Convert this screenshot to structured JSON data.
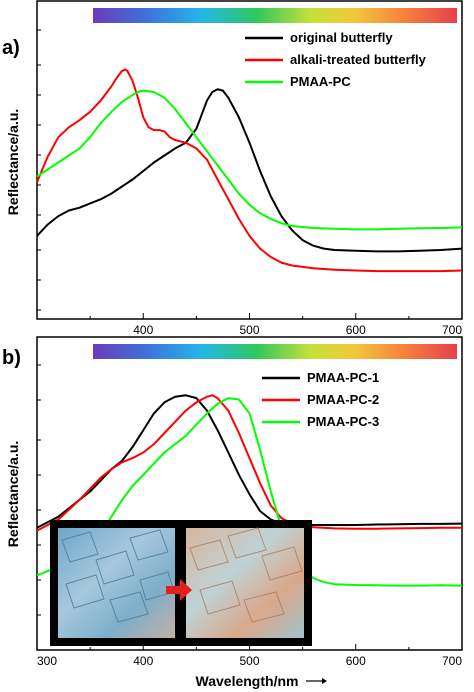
{
  "chart_data": [
    {
      "type": "line",
      "panel_label": "a)",
      "ylabel": "Reflectance/a.u.",
      "xlabel": "",
      "xlim": [
        300,
        700
      ],
      "x_ticks": [
        "400",
        "500",
        "600",
        "700"
      ],
      "legend": "top-right",
      "spectrum_bar": true,
      "series": [
        {
          "name": "original butterfly",
          "color": "#000000",
          "points": [
            [
              300,
              0.27
            ],
            [
              310,
              0.31
            ],
            [
              320,
              0.34
            ],
            [
              330,
              0.36
            ],
            [
              340,
              0.37
            ],
            [
              350,
              0.385
            ],
            [
              360,
              0.4
            ],
            [
              370,
              0.42
            ],
            [
              380,
              0.445
            ],
            [
              390,
              0.47
            ],
            [
              400,
              0.5
            ],
            [
              410,
              0.53
            ],
            [
              420,
              0.555
            ],
            [
              430,
              0.58
            ],
            [
              440,
              0.6
            ],
            [
              450,
              0.65
            ],
            [
              460,
              0.75
            ],
            [
              465,
              0.78
            ],
            [
              470,
              0.79
            ],
            [
              475,
              0.785
            ],
            [
              480,
              0.76
            ],
            [
              490,
              0.69
            ],
            [
              500,
              0.6
            ],
            [
              510,
              0.5
            ],
            [
              520,
              0.41
            ],
            [
              530,
              0.34
            ],
            [
              540,
              0.29
            ],
            [
              550,
              0.255
            ],
            [
              560,
              0.235
            ],
            [
              570,
              0.225
            ],
            [
              580,
              0.22
            ],
            [
              600,
              0.217
            ],
            [
              620,
              0.215
            ],
            [
              640,
              0.215
            ],
            [
              660,
              0.217
            ],
            [
              680,
              0.22
            ],
            [
              700,
              0.225
            ]
          ]
        },
        {
          "name": "alkali-treated butterfly",
          "color": "#ff0000",
          "points": [
            [
              300,
              0.46
            ],
            [
              310,
              0.55
            ],
            [
              320,
              0.62
            ],
            [
              330,
              0.655
            ],
            [
              340,
              0.68
            ],
            [
              350,
              0.71
            ],
            [
              360,
              0.75
            ],
            [
              370,
              0.8
            ],
            [
              375,
              0.83
            ],
            [
              380,
              0.855
            ],
            [
              383,
              0.86
            ],
            [
              385,
              0.855
            ],
            [
              390,
              0.82
            ],
            [
              395,
              0.76
            ],
            [
              400,
              0.69
            ],
            [
              405,
              0.655
            ],
            [
              410,
              0.645
            ],
            [
              415,
              0.645
            ],
            [
              420,
              0.64
            ],
            [
              425,
              0.62
            ],
            [
              430,
              0.61
            ],
            [
              440,
              0.6
            ],
            [
              450,
              0.58
            ],
            [
              460,
              0.54
            ],
            [
              470,
              0.47
            ],
            [
              480,
              0.4
            ],
            [
              490,
              0.33
            ],
            [
              500,
              0.27
            ],
            [
              510,
              0.225
            ],
            [
              520,
              0.195
            ],
            [
              530,
              0.175
            ],
            [
              540,
              0.165
            ],
            [
              560,
              0.155
            ],
            [
              580,
              0.15
            ],
            [
              600,
              0.147
            ],
            [
              620,
              0.145
            ],
            [
              640,
              0.145
            ],
            [
              660,
              0.145
            ],
            [
              680,
              0.145
            ],
            [
              700,
              0.147
            ]
          ]
        },
        {
          "name": "PMAA-PC",
          "color": "#00ff00",
          "points": [
            [
              300,
              0.48
            ],
            [
              310,
              0.505
            ],
            [
              320,
              0.53
            ],
            [
              330,
              0.555
            ],
            [
              340,
              0.58
            ],
            [
              350,
              0.62
            ],
            [
              360,
              0.67
            ],
            [
              370,
              0.71
            ],
            [
              380,
              0.745
            ],
            [
              390,
              0.77
            ],
            [
              395,
              0.78
            ],
            [
              400,
              0.785
            ],
            [
              410,
              0.78
            ],
            [
              420,
              0.76
            ],
            [
              430,
              0.72
            ],
            [
              440,
              0.67
            ],
            [
              450,
              0.62
            ],
            [
              460,
              0.57
            ],
            [
              470,
              0.52
            ],
            [
              480,
              0.47
            ],
            [
              490,
              0.42
            ],
            [
              500,
              0.38
            ],
            [
              510,
              0.35
            ],
            [
              520,
              0.33
            ],
            [
              530,
              0.315
            ],
            [
              540,
              0.305
            ],
            [
              560,
              0.298
            ],
            [
              580,
              0.295
            ],
            [
              600,
              0.293
            ],
            [
              620,
              0.293
            ],
            [
              640,
              0.295
            ],
            [
              660,
              0.297
            ],
            [
              680,
              0.298
            ],
            [
              700,
              0.3
            ]
          ]
        }
      ]
    },
    {
      "type": "line",
      "panel_label": "b)",
      "ylabel": "Reflectance/a.u.",
      "xlabel": "Wavelength/nm",
      "xlim": [
        300,
        700
      ],
      "x_ticks": [
        "300",
        "400",
        "500",
        "600",
        "700"
      ],
      "legend": "top-right",
      "spectrum_bar": true,
      "inset": "optical micrographs of wing scales before and after treatment, red arrow",
      "series": [
        {
          "name": "PMAA-PC-1",
          "color": "#000000",
          "points": [
            [
              300,
              0.42
            ],
            [
              320,
              0.46
            ],
            [
              340,
              0.52
            ],
            [
              350,
              0.55
            ],
            [
              360,
              0.59
            ],
            [
              370,
              0.63
            ],
            [
              380,
              0.66
            ],
            [
              390,
              0.71
            ],
            [
              400,
              0.77
            ],
            [
              410,
              0.83
            ],
            [
              420,
              0.87
            ],
            [
              430,
              0.89
            ],
            [
              440,
              0.895
            ],
            [
              450,
              0.885
            ],
            [
              460,
              0.84
            ],
            [
              470,
              0.77
            ],
            [
              480,
              0.69
            ],
            [
              490,
              0.61
            ],
            [
              500,
              0.54
            ],
            [
              510,
              0.48
            ],
            [
              520,
              0.45
            ],
            [
              530,
              0.435
            ],
            [
              540,
              0.43
            ],
            [
              560,
              0.43
            ],
            [
              580,
              0.43
            ],
            [
              600,
              0.43
            ],
            [
              620,
              0.432
            ],
            [
              640,
              0.433
            ],
            [
              660,
              0.434
            ],
            [
              680,
              0.434
            ],
            [
              700,
              0.435
            ]
          ]
        },
        {
          "name": "PMAA-PC-2",
          "color": "#ff0000",
          "points": [
            [
              300,
              0.41
            ],
            [
              320,
              0.45
            ],
            [
              340,
              0.52
            ],
            [
              350,
              0.56
            ],
            [
              360,
              0.6
            ],
            [
              370,
              0.63
            ],
            [
              380,
              0.655
            ],
            [
              390,
              0.67
            ],
            [
              400,
              0.69
            ],
            [
              410,
              0.72
            ],
            [
              420,
              0.76
            ],
            [
              430,
              0.8
            ],
            [
              440,
              0.84
            ],
            [
              450,
              0.87
            ],
            [
              460,
              0.89
            ],
            [
              465,
              0.895
            ],
            [
              470,
              0.885
            ],
            [
              480,
              0.84
            ],
            [
              490,
              0.76
            ],
            [
              500,
              0.67
            ],
            [
              510,
              0.58
            ],
            [
              520,
              0.5
            ],
            [
              530,
              0.455
            ],
            [
              540,
              0.435
            ],
            [
              560,
              0.422
            ],
            [
              580,
              0.418
            ],
            [
              600,
              0.417
            ],
            [
              620,
              0.417
            ],
            [
              640,
              0.418
            ],
            [
              660,
              0.419
            ],
            [
              680,
              0.42
            ],
            [
              700,
              0.42
            ]
          ]
        },
        {
          "name": "PMAA-PC-3",
          "color": "#00ff00",
          "points": [
            [
              300,
              0.25
            ],
            [
              320,
              0.28
            ],
            [
              340,
              0.32
            ],
            [
              350,
              0.35
            ],
            [
              360,
              0.4
            ],
            [
              370,
              0.46
            ],
            [
              380,
              0.52
            ],
            [
              390,
              0.57
            ],
            [
              400,
              0.61
            ],
            [
              410,
              0.65
            ],
            [
              420,
              0.69
            ],
            [
              430,
              0.72
            ],
            [
              440,
              0.75
            ],
            [
              450,
              0.79
            ],
            [
              460,
              0.83
            ],
            [
              470,
              0.865
            ],
            [
              480,
              0.885
            ],
            [
              490,
              0.88
            ],
            [
              500,
              0.83
            ],
            [
              510,
              0.7
            ],
            [
              520,
              0.55
            ],
            [
              530,
              0.42
            ],
            [
              540,
              0.33
            ],
            [
              550,
              0.27
            ],
            [
              560,
              0.24
            ],
            [
              570,
              0.225
            ],
            [
              580,
              0.218
            ],
            [
              600,
              0.215
            ],
            [
              620,
              0.214
            ],
            [
              640,
              0.213
            ],
            [
              660,
              0.213
            ],
            [
              680,
              0.214
            ],
            [
              700,
              0.213
            ]
          ]
        }
      ]
    }
  ]
}
